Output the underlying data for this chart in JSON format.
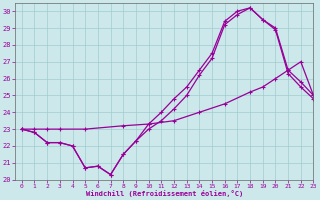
{
  "xlabel": "Windchill (Refroidissement éolien,°C)",
  "bg_color": "#cce8ea",
  "line_color": "#990099",
  "xlim": [
    -0.5,
    23
  ],
  "ylim": [
    20,
    30.5
  ],
  "yticks": [
    20,
    21,
    22,
    23,
    24,
    25,
    26,
    27,
    28,
    29,
    30
  ],
  "xticks": [
    0,
    1,
    2,
    3,
    4,
    5,
    6,
    7,
    8,
    9,
    10,
    11,
    12,
    13,
    14,
    15,
    16,
    17,
    18,
    19,
    20,
    21,
    22,
    23
  ],
  "line1_x": [
    0,
    1,
    2,
    3,
    4,
    5,
    6,
    7,
    8,
    9,
    10,
    11,
    12,
    13,
    14,
    15,
    16,
    17,
    18,
    19,
    20,
    21,
    22,
    23
  ],
  "line1_y": [
    23.0,
    22.8,
    22.2,
    22.2,
    22.0,
    20.7,
    20.8,
    20.3,
    21.5,
    22.3,
    23.3,
    24.0,
    24.8,
    25.5,
    26.5,
    27.5,
    29.4,
    30.0,
    30.2,
    29.5,
    29.0,
    26.5,
    25.8,
    25.0
  ],
  "line2_x": [
    0,
    1,
    2,
    3,
    5,
    8,
    10,
    12,
    14,
    16,
    18,
    19,
    20,
    21,
    22,
    23
  ],
  "line2_y": [
    23.0,
    23.0,
    23.0,
    23.0,
    23.0,
    23.2,
    23.3,
    23.5,
    24.0,
    24.5,
    25.2,
    25.5,
    26.0,
    26.5,
    27.0,
    25.0
  ],
  "line3_x": [
    0,
    1,
    2,
    3,
    4,
    5,
    6,
    7,
    8,
    9,
    10,
    11,
    12,
    13,
    14,
    15,
    16,
    17,
    18,
    19,
    20,
    21,
    22,
    23
  ],
  "line3_y": [
    23.0,
    22.8,
    22.2,
    22.2,
    22.0,
    20.7,
    20.8,
    20.3,
    21.5,
    22.3,
    23.0,
    23.5,
    24.2,
    25.0,
    26.2,
    27.2,
    29.2,
    29.8,
    30.2,
    29.5,
    28.9,
    26.3,
    25.5,
    24.8
  ],
  "grid_color": "#a0ccce"
}
